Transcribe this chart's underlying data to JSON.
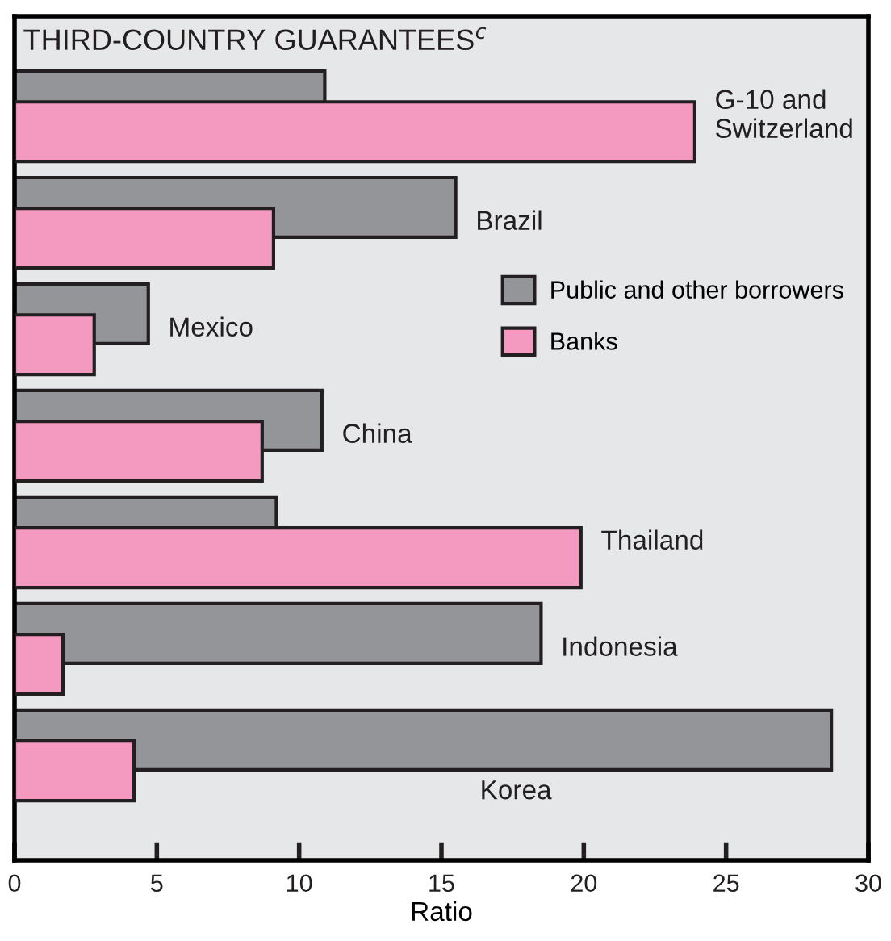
{
  "chart_data": {
    "type": "bar",
    "orientation": "horizontal",
    "title": "THIRD-COUNTRY GUARANTEES$^{c}$",
    "xlabel": "Ratio",
    "categories": [
      "G-10 and\nSwitzerland",
      "Brazil",
      "Mexico",
      "China",
      "Thailand",
      "Indonesia",
      "Korea"
    ],
    "series": [
      {
        "name": "Public and other borrowers",
        "color": "#939598",
        "values": [
          10.9,
          15.5,
          4.7,
          10.8,
          9.2,
          18.5,
          28.7
        ]
      },
      {
        "name": "Banks",
        "color": "#f49ac1",
        "values": [
          23.9,
          9.1,
          2.8,
          8.7,
          19.9,
          1.7,
          4.2
        ]
      }
    ],
    "xlim": [
      0,
      30
    ],
    "xticks": [
      0,
      5,
      10,
      15,
      20,
      25,
      30
    ],
    "tick_labels": "x",
    "grid": false,
    "legend": "right"
  }
}
